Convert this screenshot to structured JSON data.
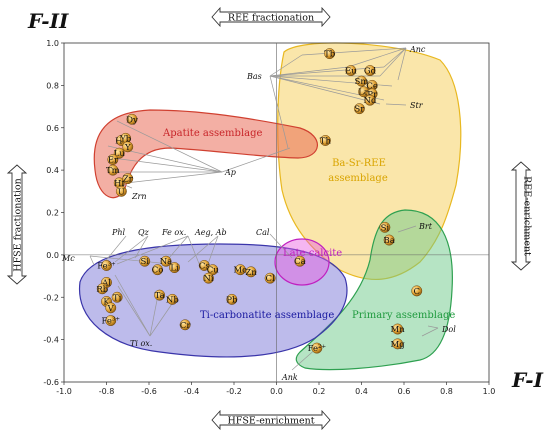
{
  "chart_data": {
    "type": "scatter",
    "title": "",
    "xlabel": "F-I",
    "ylabel": "F-II",
    "xlim": [
      -1.0,
      1.0
    ],
    "ylim": [
      -0.6,
      1.0
    ],
    "x_ticks": [
      "-1.0",
      "-0.8",
      "-0.6",
      "-0.4",
      "-0.2",
      "0.0",
      "0.2",
      "0.4",
      "0.6",
      "0.8",
      "1.0"
    ],
    "y_ticks": [
      "-0.6",
      "-0.4",
      "-0.2",
      "0.0",
      "0.2",
      "0.4",
      "0.6",
      "0.8",
      "1.0"
    ],
    "x_tick_values": [
      -1.0,
      -0.8,
      -0.6,
      -0.4,
      -0.2,
      0.0,
      0.2,
      0.4,
      0.6,
      0.8,
      1.0
    ],
    "y_tick_values": [
      -0.6,
      -0.4,
      -0.2,
      0.0,
      0.2,
      0.4,
      0.6,
      0.8,
      1.0
    ],
    "arrows": {
      "top": "REE fractionation",
      "bottom": "HFSE-enrichment",
      "left": "HFSE fractionation",
      "right": "REE-enrichment"
    },
    "points": [
      {
        "label": "Tb",
        "x": 0.25,
        "y": 0.95
      },
      {
        "label": "Eu",
        "x": 0.35,
        "y": 0.87
      },
      {
        "label": "Gd",
        "x": 0.44,
        "y": 0.87
      },
      {
        "label": "Sm",
        "x": 0.4,
        "y": 0.82
      },
      {
        "label": "Ce",
        "x": 0.45,
        "y": 0.8
      },
      {
        "label": "La",
        "x": 0.41,
        "y": 0.77
      },
      {
        "label": "Pr",
        "x": 0.45,
        "y": 0.76
      },
      {
        "label": "Nd",
        "x": 0.44,
        "y": 0.73
      },
      {
        "label": "Sr",
        "x": 0.39,
        "y": 0.69
      },
      {
        "label": "Th",
        "x": 0.23,
        "y": 0.54
      },
      {
        "label": "Dy",
        "x": -0.68,
        "y": 0.64
      },
      {
        "label": "Ho",
        "x": -0.73,
        "y": 0.54
      },
      {
        "label": "Yb",
        "x": -0.71,
        "y": 0.55
      },
      {
        "label": "Y",
        "x": -0.7,
        "y": 0.51
      },
      {
        "label": "Lu",
        "x": -0.74,
        "y": 0.48
      },
      {
        "label": "Er",
        "x": -0.77,
        "y": 0.45
      },
      {
        "label": "Tm",
        "x": -0.77,
        "y": 0.4
      },
      {
        "label": "Hf",
        "x": -0.74,
        "y": 0.34
      },
      {
        "label": "Zr",
        "x": -0.7,
        "y": 0.36
      },
      {
        "label": "U",
        "x": -0.73,
        "y": 0.3
      },
      {
        "label": "Si",
        "x": 0.51,
        "y": 0.13
      },
      {
        "label": "Ba",
        "x": 0.53,
        "y": 0.07
      },
      {
        "label": "Ca",
        "x": 0.11,
        "y": -0.03
      },
      {
        "label": "C",
        "x": 0.66,
        "y": -0.17
      },
      {
        "label": "Mn",
        "x": 0.57,
        "y": -0.35
      },
      {
        "label": "Mg",
        "x": 0.57,
        "y": -0.42
      },
      {
        "label": "Fe2+",
        "x": 0.19,
        "y": -0.44
      },
      {
        "label": "Fe3+",
        "x": -0.8,
        "y": -0.05
      },
      {
        "label": "Si",
        "x": -0.62,
        "y": -0.03
      },
      {
        "label": "Na",
        "x": -0.52,
        "y": -0.03
      },
      {
        "label": "Co",
        "x": -0.56,
        "y": -0.07
      },
      {
        "label": "Li",
        "x": -0.48,
        "y": -0.06
      },
      {
        "label": "Cs",
        "x": -0.34,
        "y": -0.05
      },
      {
        "label": "Cu",
        "x": -0.3,
        "y": -0.07
      },
      {
        "label": "Ni",
        "x": -0.32,
        "y": -0.11
      },
      {
        "label": "Mo",
        "x": -0.17,
        "y": -0.07
      },
      {
        "label": "Zn",
        "x": -0.12,
        "y": -0.08
      },
      {
        "label": "Cl",
        "x": -0.03,
        "y": -0.11
      },
      {
        "label": "Al",
        "x": -0.8,
        "y": -0.13
      },
      {
        "label": "Rb",
        "x": -0.82,
        "y": -0.16
      },
      {
        "label": "Ti",
        "x": -0.75,
        "y": -0.2
      },
      {
        "label": "K",
        "x": -0.8,
        "y": -0.22
      },
      {
        "label": "V",
        "x": -0.78,
        "y": -0.25
      },
      {
        "label": "Ta",
        "x": -0.55,
        "y": -0.19
      },
      {
        "label": "Nb",
        "x": -0.49,
        "y": -0.21
      },
      {
        "label": "Pb",
        "x": -0.21,
        "y": -0.21
      },
      {
        "label": "Fe3+",
        "x": -0.78,
        "y": -0.31
      },
      {
        "label": "Cr",
        "x": -0.43,
        "y": -0.33
      }
    ],
    "groups": [
      {
        "name": "Apatite assemblage",
        "color": "#e8604a",
        "label_color": "#c8262a"
      },
      {
        "name": "Ba-Sr-REE assemblage",
        "color": "#f5c842",
        "label_color": "#d9a400"
      },
      {
        "name": "Late calcite",
        "color": "#e85de0",
        "label_color": "#c020c0"
      },
      {
        "name": "Primary assemblage",
        "color": "#6ec98a",
        "label_color": "#1f9a3e"
      },
      {
        "name": "Ti-carbonatite assemblage",
        "color": "#5a55cc",
        "label_color": "#1a1aa0"
      }
    ],
    "annotations": [
      "Anc",
      "Bas",
      "Str",
      "Ap",
      "Zrn",
      "Brt",
      "Cal",
      "Dol",
      "Ank",
      "Phl",
      "Qz",
      "Fe ox.",
      "Aeg, Ab",
      "Mc",
      "Ti ox."
    ],
    "grid": false,
    "legend": "none"
  }
}
